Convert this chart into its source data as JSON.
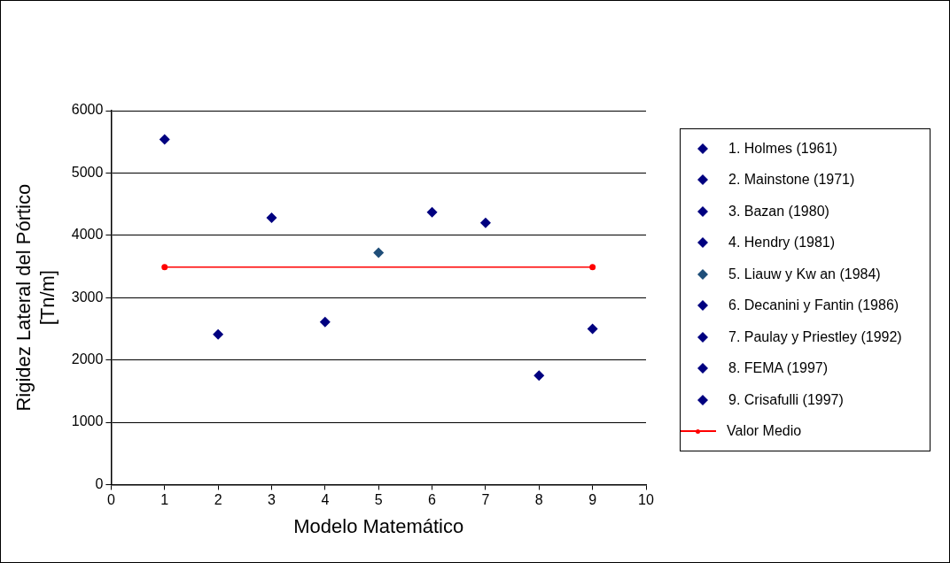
{
  "chart_data": {
    "type": "scatter",
    "xlabel": "Modelo Matemático",
    "ylabel": "Rigidez Lateral del Pórtico [Tn/m]",
    "xlim": [
      0,
      10
    ],
    "xticks": [
      0,
      1,
      2,
      3,
      4,
      5,
      6,
      7,
      8,
      9,
      10
    ],
    "ylim": [
      0,
      6000
    ],
    "yticks": [
      0,
      1000,
      2000,
      3000,
      4000,
      5000,
      6000
    ],
    "grid": "y",
    "legend": "right",
    "marker": "diamond",
    "series": [
      {
        "name": "1. Holmes (1961)",
        "color": "#000080",
        "x": [
          1
        ],
        "values": [
          5540
        ]
      },
      {
        "name": "2. Mainstone (1971)",
        "color": "#000080",
        "x": [
          2
        ],
        "values": [
          2410
        ]
      },
      {
        "name": "3. Bazan (1980)",
        "color": "#000080",
        "x": [
          3
        ],
        "values": [
          4280
        ]
      },
      {
        "name": "4. Hendry (1981)",
        "color": "#000080",
        "x": [
          4
        ],
        "values": [
          2610
        ]
      },
      {
        "name": "5. Liauw  y Kw an (1984)",
        "color": "#1f4e79",
        "x": [
          5
        ],
        "values": [
          3720
        ]
      },
      {
        "name": "6. Decanini y Fantin (1986)",
        "color": "#000080",
        "x": [
          6
        ],
        "values": [
          4370
        ]
      },
      {
        "name": "7. Paulay y Priestley (1992)",
        "color": "#000080",
        "x": [
          7
        ],
        "values": [
          4200
        ]
      },
      {
        "name": "8. FEMA (1997)",
        "color": "#000080",
        "x": [
          8
        ],
        "values": [
          1750
        ]
      },
      {
        "name": "9. Crisafulli (1997)",
        "color": "#000080",
        "x": [
          9
        ],
        "values": [
          2500
        ]
      },
      {
        "name": "Valor Medio",
        "type": "line",
        "marker": "circle",
        "color": "#ff0000",
        "x": [
          1,
          9
        ],
        "values": [
          3490,
          3490
        ]
      }
    ]
  }
}
